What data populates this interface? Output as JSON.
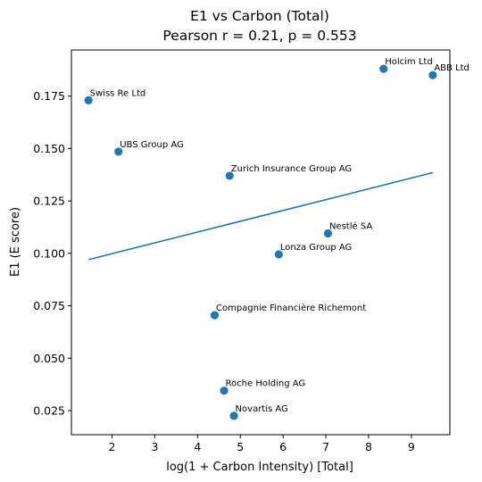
{
  "chart_data": {
    "type": "scatter",
    "title": "E1 vs Carbon (Total)",
    "subtitle": "Pearson r = 0.21, p = 0.553",
    "xlabel": "log(1 + Carbon Intensity) [Total]",
    "ylabel": "E1 (E score)",
    "xlim": [
      1.05,
      9.9
    ],
    "ylim": [
      0.0135,
      0.197
    ],
    "xticks": [
      2,
      3,
      4,
      5,
      6,
      7,
      8,
      9
    ],
    "yticks": [
      0.025,
      0.05,
      0.075,
      0.1,
      0.125,
      0.15,
      0.175
    ],
    "ytick_labels": [
      "0.025",
      "0.050",
      "0.075",
      "0.100",
      "0.125",
      "0.150",
      "0.175"
    ],
    "grid": false,
    "point_color": "#1f77b4",
    "line_color": "#1f77b4",
    "points": [
      {
        "label": "Swiss Re Ltd",
        "x": 1.45,
        "y": 0.173
      },
      {
        "label": "UBS Group AG",
        "x": 2.15,
        "y": 0.1485
      },
      {
        "label": "Zurich Insurance Group AG",
        "x": 4.75,
        "y": 0.137
      },
      {
        "label": "Holcim Ltd",
        "x": 8.35,
        "y": 0.188
      },
      {
        "label": "ABB Ltd",
        "x": 9.5,
        "y": 0.185
      },
      {
        "label": "Nestlé SA",
        "x": 7.05,
        "y": 0.1095
      },
      {
        "label": "Lonza Group AG",
        "x": 5.9,
        "y": 0.0995
      },
      {
        "label": "Compagnie Financière Richemont",
        "x": 4.4,
        "y": 0.0705
      },
      {
        "label": "Roche Holding AG",
        "x": 4.62,
        "y": 0.0345
      },
      {
        "label": "Novartis AG",
        "x": 4.85,
        "y": 0.0225
      }
    ],
    "fit_line": {
      "x": [
        1.45,
        9.5
      ],
      "y": [
        0.097,
        0.1385
      ]
    }
  }
}
